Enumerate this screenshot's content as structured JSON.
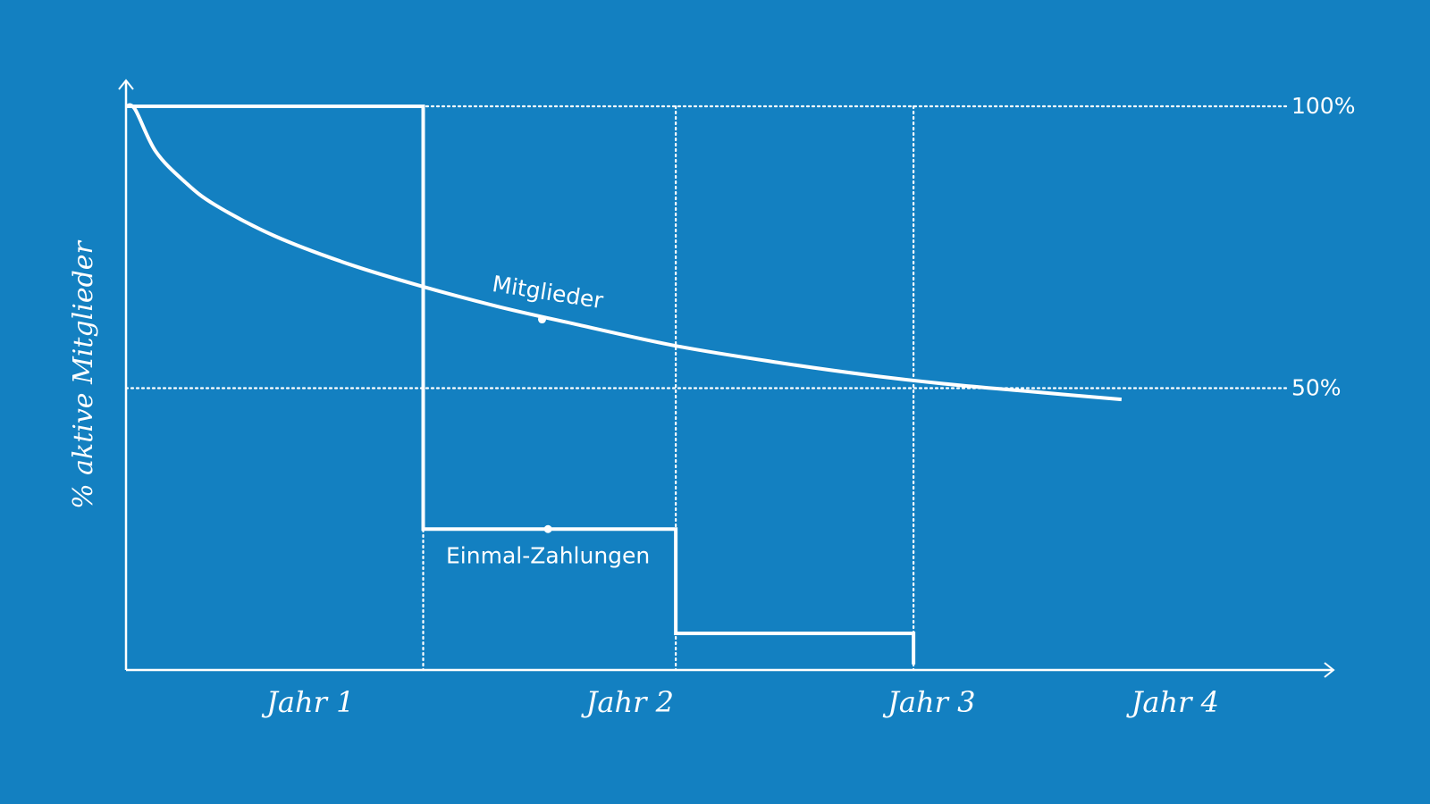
{
  "colors": {
    "background": "#1380c1",
    "ink": "#ffffff"
  },
  "chart_data": {
    "type": "line",
    "ylabel": "% aktive Mitglieder",
    "xlabel": "",
    "categories": [
      "Jahr 1",
      "Jahr 2",
      "Jahr 3",
      "Jahr 4"
    ],
    "xlim": [
      0,
      4
    ],
    "ylim": [
      0,
      100
    ],
    "reference_lines": [
      {
        "label": "100%",
        "value": 100
      },
      {
        "label": "50%",
        "value": 50
      }
    ],
    "year_dividers": [
      1.0,
      1.85,
      2.65
    ],
    "series": [
      {
        "name": "Mitglieder",
        "kind": "curve",
        "x": [
          0,
          0.03,
          0.1,
          0.2,
          0.3,
          0.5,
          0.75,
          1.0,
          1.25,
          1.5,
          1.85,
          2.2,
          2.5,
          2.75,
          3.0,
          3.35
        ],
        "y": [
          100,
          99.5,
          92,
          86.5,
          82.5,
          77,
          72,
          68,
          64.5,
          61.5,
          57.5,
          54.5,
          52.3,
          50.8,
          49.6,
          48
        ]
      },
      {
        "name": "Einmal-Zahlungen",
        "kind": "step",
        "x": [
          0,
          1.0,
          1.0,
          1.85,
          1.85,
          2.65,
          2.65
        ],
        "y": [
          100,
          100,
          25,
          25,
          6.5,
          6.5,
          1
        ]
      }
    ],
    "annotations": [
      {
        "text": "Mitglieder",
        "series": "Mitglieder",
        "at_x": 1.4,
        "at_y": 62.2
      },
      {
        "text": "Einmal-Zahlungen",
        "series": "Einmal-Zahlungen",
        "at_x": 1.42,
        "at_y": 25
      }
    ],
    "grid": false,
    "legend": "none"
  }
}
